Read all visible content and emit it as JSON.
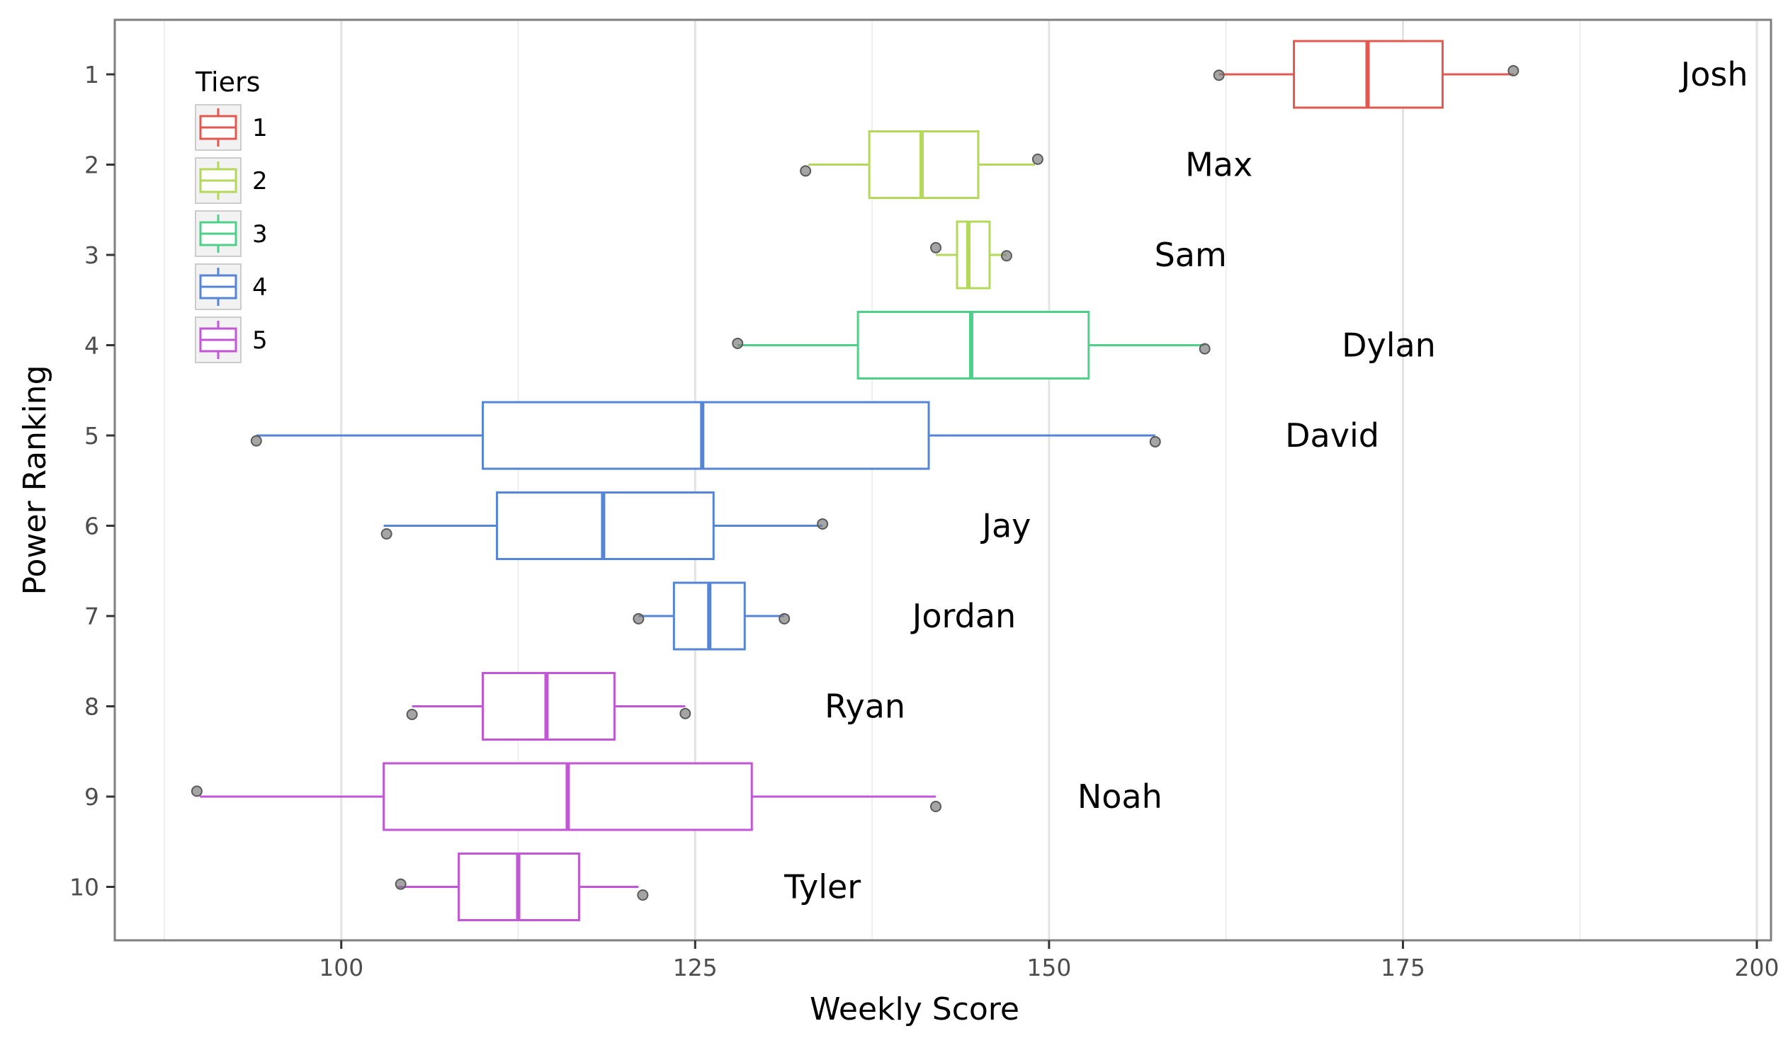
{
  "chart_data": {
    "type": "boxplot",
    "orientation": "horizontal",
    "xlabel": "Weekly Score",
    "ylabel": "Power Ranking",
    "xlim": [
      84,
      201
    ],
    "x_ticks": [
      100,
      125,
      150,
      175,
      200
    ],
    "y_ticks": [
      1,
      2,
      3,
      4,
      5,
      6,
      7,
      8,
      9,
      10
    ],
    "grid": true,
    "legend": {
      "title": "Tiers",
      "position": "top-left",
      "entries": [
        {
          "label": "1",
          "color": "#e0584f"
        },
        {
          "label": "2",
          "color": "#b4d85a"
        },
        {
          "label": "3",
          "color": "#4fd08a"
        },
        {
          "label": "4",
          "color": "#5585d6"
        },
        {
          "label": "5",
          "color": "#c256d6"
        }
      ]
    },
    "tier_colors": {
      "1": "#e0584f",
      "2": "#b4d85a",
      "3": "#4fd08a",
      "4": "#5585d6",
      "5": "#c256d6"
    },
    "outlier_color": "#7f7f7f",
    "series": [
      {
        "rank": 1,
        "label": "Josh",
        "tier": "1",
        "whisker_low": 162.0,
        "q1": 167.3,
        "median": 172.5,
        "q3": 177.8,
        "whisker_high": 182.8,
        "points": [
          {
            "x": 162.0,
            "y": 1.01
          },
          {
            "x": 182.8,
            "y": 0.96
          }
        ],
        "label_x": 197.0
      },
      {
        "rank": 2,
        "label": "Max",
        "tier": "2",
        "whisker_low": 133.0,
        "q1": 137.3,
        "median": 141.0,
        "q3": 145.0,
        "whisker_high": 149.0,
        "points": [
          {
            "x": 132.8,
            "y": 2.07
          },
          {
            "x": 149.2,
            "y": 1.94
          }
        ],
        "label_x": 162.0
      },
      {
        "rank": 3,
        "label": "Sam",
        "tier": "2",
        "whisker_low": 142.0,
        "q1": 143.5,
        "median": 144.3,
        "q3": 145.8,
        "whisker_high": 147.0,
        "points": [
          {
            "x": 142.0,
            "y": 2.92
          },
          {
            "x": 147.0,
            "y": 3.01
          }
        ],
        "label_x": 160.0
      },
      {
        "rank": 4,
        "label": "Dylan",
        "tier": "3",
        "whisker_low": 128.0,
        "q1": 136.5,
        "median": 144.5,
        "q3": 152.8,
        "whisker_high": 161.0,
        "points": [
          {
            "x": 128.0,
            "y": 3.98
          },
          {
            "x": 161.0,
            "y": 4.04
          }
        ],
        "label_x": 174.0
      },
      {
        "rank": 5,
        "label": "David",
        "tier": "4",
        "whisker_low": 94.0,
        "q1": 110.0,
        "median": 125.5,
        "q3": 141.5,
        "whisker_high": 157.5,
        "points": [
          {
            "x": 94.0,
            "y": 5.06
          },
          {
            "x": 157.5,
            "y": 5.07
          }
        ],
        "label_x": 170.0
      },
      {
        "rank": 6,
        "label": "Jay",
        "tier": "4",
        "whisker_low": 103.0,
        "q1": 111.0,
        "median": 118.5,
        "q3": 126.3,
        "whisker_high": 134.0,
        "points": [
          {
            "x": 103.2,
            "y": 6.09
          },
          {
            "x": 134.0,
            "y": 5.98
          }
        ],
        "label_x": 147.0
      },
      {
        "rank": 7,
        "label": "Jordan",
        "tier": "4",
        "whisker_low": 121.0,
        "q1": 123.5,
        "median": 126.0,
        "q3": 128.5,
        "whisker_high": 131.3,
        "points": [
          {
            "x": 121.0,
            "y": 7.03
          },
          {
            "x": 131.3,
            "y": 7.03
          }
        ],
        "label_x": 144.0
      },
      {
        "rank": 8,
        "label": "Ryan",
        "tier": "5",
        "whisker_low": 105.0,
        "q1": 110.0,
        "median": 114.5,
        "q3": 119.3,
        "whisker_high": 124.3,
        "points": [
          {
            "x": 105.0,
            "y": 8.09
          },
          {
            "x": 124.3,
            "y": 8.08
          }
        ],
        "label_x": 137.0
      },
      {
        "rank": 9,
        "label": "Noah",
        "tier": "5",
        "whisker_low": 90.0,
        "q1": 103.0,
        "median": 116.0,
        "q3": 129.0,
        "whisker_high": 142.0,
        "points": [
          {
            "x": 89.8,
            "y": 8.94
          },
          {
            "x": 142.0,
            "y": 9.11
          }
        ],
        "label_x": 155.0
      },
      {
        "rank": 10,
        "label": "Tyler",
        "tier": "5",
        "whisker_low": 104.0,
        "q1": 108.3,
        "median": 112.5,
        "q3": 116.8,
        "whisker_high": 121.0,
        "points": [
          {
            "x": 104.2,
            "y": 9.97
          },
          {
            "x": 121.3,
            "y": 10.09
          }
        ],
        "label_x": 134.0
      }
    ]
  }
}
